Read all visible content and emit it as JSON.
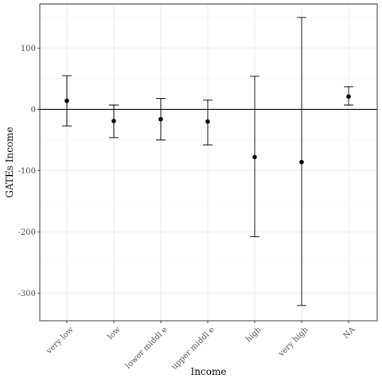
{
  "chart_data": {
    "type": "scatter",
    "subtype": "point-range with error bars",
    "xlabel": "Income",
    "ylabel": "GATEs Income",
    "categories": [
      "very low",
      "low",
      "lower middl e",
      "upper middl e",
      "high",
      "very high",
      "NA"
    ],
    "estimates": [
      14,
      -19,
      -16,
      -20,
      -78,
      -86,
      21
    ],
    "lower": [
      -27,
      -46,
      -50,
      -58,
      -208,
      -320,
      7
    ],
    "upper": [
      55,
      7,
      18,
      15,
      54,
      150,
      37
    ],
    "yticks": [
      100,
      0,
      -100,
      -200,
      -300
    ],
    "ytick_labels": [
      "100",
      "0",
      "-100",
      "-200",
      "-300"
    ],
    "ylim": [
      -345,
      172
    ],
    "reference_line": 0,
    "grid": true,
    "theme": "bw",
    "colors": {
      "points": "#000000",
      "errorbars": "#000000",
      "grid_major": "#ebebeb",
      "grid_minor": "#f5f5f5",
      "border": "#333333",
      "tick_text": "#4d4d4d"
    }
  }
}
